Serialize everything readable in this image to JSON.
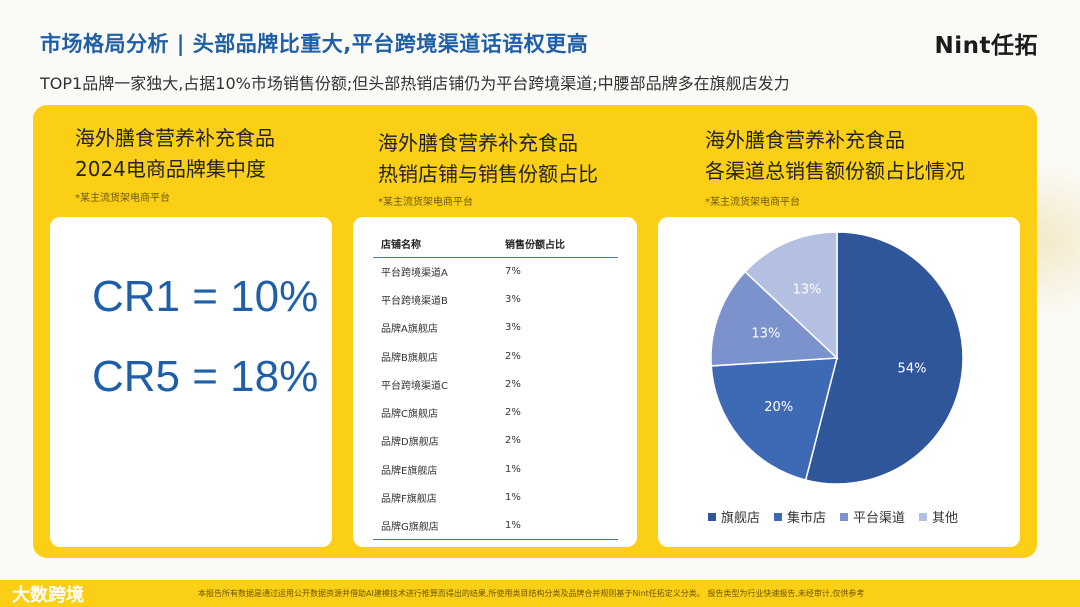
{
  "header": {
    "title": "市场格局分析 | 头部品牌比重大,平台跨境渠道话语权更高",
    "logo": "Nint任拓",
    "subtitle": "TOP1品牌一家独大,占据10%市场销售份额;但头部热销店铺仍为平台跨境渠道;中腰部品牌多在旗舰店发力"
  },
  "col1": {
    "title_line1": "海外膳食营养补充食品",
    "title_line2": "2024电商品牌集中度",
    "note": "*某主流货架电商平台",
    "cr1": "CR1 = 10%",
    "cr5": "CR5 = 18%"
  },
  "col2": {
    "title_line1": "海外膳食营养补充食品",
    "title_line2": "热销店铺与销售份额占比",
    "note": "*某主流货架电商平台",
    "table": {
      "headers": [
        "店铺名称",
        "销售份额占比"
      ],
      "rows": [
        [
          "平台跨境渠道A",
          "7%"
        ],
        [
          "平台跨境渠道B",
          "3%"
        ],
        [
          "品牌A旗舰店",
          "3%"
        ],
        [
          "品牌B旗舰店",
          "2%"
        ],
        [
          "平台跨境渠道C",
          "2%"
        ],
        [
          "品牌C旗舰店",
          "2%"
        ],
        [
          "品牌D旗舰店",
          "2%"
        ],
        [
          "品牌E旗舰店",
          "1%"
        ],
        [
          "品牌F旗舰店",
          "1%"
        ],
        [
          "品牌G旗舰店",
          "1%"
        ]
      ]
    }
  },
  "col3": {
    "title_line1": "海外膳食营养补充食品",
    "title_line2": "各渠道总销售额份额占比情况",
    "note": "*某主流货架电商平台"
  },
  "chart_data": {
    "type": "pie",
    "categories": [
      "旗舰店",
      "集市店",
      "平台渠道",
      "其他"
    ],
    "values": [
      54,
      20,
      13,
      13
    ],
    "labels": [
      "54%",
      "20%",
      "13%",
      "13%"
    ],
    "colors": [
      "#2f559b",
      "#3e69b5",
      "#7b92cc",
      "#b4c0e1"
    ],
    "legend_position": "bottom"
  },
  "footer": {
    "brand": "大数跨境",
    "text": "本报告所有数据是通过运用公开数据资源并借助AI建模技术进行推算而得出的结果,所使用类目结构分类及品牌合并规则基于Nint任拓定义分类。 报告类型为行业快速报告,未经审计,仅供参考"
  }
}
